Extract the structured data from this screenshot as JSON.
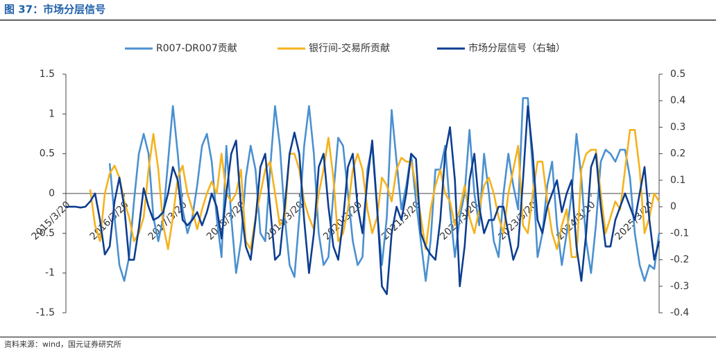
{
  "chart_data": {
    "type": "line",
    "title": "图 37：市场分层信号",
    "source": "资料来源：wind，国元证券研究所",
    "categories": [
      "2015/3/20",
      null,
      null,
      null,
      null,
      null,
      null,
      null,
      null,
      null,
      null,
      null,
      "2016/3/20",
      null,
      null,
      null,
      null,
      null,
      null,
      null,
      null,
      null,
      null,
      null,
      "2017/3/20",
      null,
      null,
      null,
      null,
      null,
      null,
      null,
      null,
      null,
      null,
      null,
      "2018/3/20",
      null,
      null,
      null,
      null,
      null,
      null,
      null,
      null,
      null,
      null,
      null,
      "2019/3/20",
      null,
      null,
      null,
      null,
      null,
      null,
      null,
      null,
      null,
      null,
      null,
      "2020/3/20",
      null,
      null,
      null,
      null,
      null,
      null,
      null,
      null,
      null,
      null,
      null,
      "2021/3/20",
      null,
      null,
      null,
      null,
      null,
      null,
      null,
      null,
      null,
      null,
      null,
      "2022/3/20",
      null,
      null,
      null,
      null,
      null,
      null,
      null,
      null,
      null,
      null,
      null,
      "2023/3/20",
      null,
      null,
      null,
      null,
      null,
      null,
      null,
      null,
      null,
      null,
      null,
      "2024/3/20",
      null,
      null,
      null,
      null,
      null,
      null,
      null,
      null,
      null,
      null,
      null,
      "2025/3/20",
      null,
      null
    ],
    "series": [
      {
        "name": "R007-DR007贡献",
        "color": "#4a90d0",
        "values": [
          null,
          null,
          null,
          null,
          null,
          null,
          null,
          null,
          null,
          0.38,
          -0.3,
          -0.9,
          -1.1,
          -0.8,
          -0.1,
          0.5,
          0.75,
          0.5,
          -0.3,
          -0.6,
          -0.3,
          0.4,
          1.1,
          0.5,
          -0.2,
          -0.5,
          -0.3,
          0.1,
          0.6,
          0.75,
          0.4,
          -0.3,
          -0.8,
          0.6,
          -0.3,
          -1.0,
          -0.6,
          0.2,
          0.6,
          0.3,
          -0.5,
          -0.6,
          0.3,
          1.1,
          0.6,
          -0.3,
          -0.9,
          -1.05,
          -0.3,
          0.6,
          1.1,
          0.5,
          -0.5,
          -0.9,
          -0.8,
          0.0,
          0.7,
          0.6,
          0.0,
          -0.6,
          -0.9,
          -0.8,
          0.3,
          0.6,
          -0.2,
          -0.9,
          -0.3,
          1.05,
          0.4,
          -0.2,
          0.1,
          0.5,
          -0.1,
          -0.6,
          -1.1,
          -0.6,
          0.3,
          0.3,
          0.6,
          -0.2,
          -0.8,
          -0.3,
          0.0,
          0.8,
          0.0,
          -0.4,
          0.5,
          0.0,
          -0.6,
          -0.8,
          0.0,
          0.5,
          0.1,
          -0.2,
          1.2,
          1.2,
          0.3,
          -0.8,
          -0.5,
          0.1,
          0.4,
          -0.4,
          -0.9,
          -0.5,
          0.0,
          0.75,
          0.2,
          -0.6,
          -1.0,
          -0.4,
          0.4,
          0.55,
          0.5,
          0.4,
          0.55,
          0.55,
          0.2,
          -0.5,
          -0.9,
          -1.1,
          -0.9,
          -0.95,
          -0.5
        ]
      },
      {
        "name": "银行间-交易所贡献",
        "color": "#f5b21b",
        "values": [
          null,
          null,
          null,
          null,
          null,
          0.05,
          -0.4,
          -0.6,
          0.0,
          0.25,
          0.35,
          0.2,
          -0.1,
          -0.3,
          -0.6,
          -0.5,
          -0.3,
          0.3,
          0.75,
          0.3,
          -0.4,
          -0.7,
          -0.3,
          0.2,
          0.35,
          0.0,
          -0.2,
          -0.45,
          -0.2,
          0.0,
          0.15,
          0.0,
          0.5,
          0.0,
          -0.1,
          0.0,
          0.3,
          -0.6,
          -0.7,
          -0.3,
          0.0,
          0.3,
          0.4,
          0.0,
          -0.4,
          -0.3,
          0.5,
          0.5,
          0.3,
          -0.1,
          -0.3,
          -0.45,
          0.0,
          0.3,
          0.7,
          0.2,
          -0.6,
          -0.5,
          -0.2,
          0.3,
          0.5,
          0.3,
          -0.2,
          -0.5,
          -0.3,
          0.2,
          0.1,
          -0.1,
          0.3,
          0.45,
          0.4,
          0.4,
          0.1,
          -0.3,
          -0.7,
          -0.2,
          0.1,
          0.3,
          0.0,
          -0.1,
          -0.4,
          -0.2,
          0.1,
          -0.3,
          -0.5,
          -0.2,
          0.1,
          0.2,
          0.0,
          -0.3,
          -0.5,
          0.0,
          0.3,
          0.6,
          -0.4,
          -0.5,
          0.0,
          0.4,
          0.4,
          -0.1,
          -0.5,
          -0.7,
          -0.4,
          -0.2,
          -0.8,
          -0.8,
          0.3,
          0.5,
          0.55,
          0.55,
          0.0,
          -0.5,
          -0.3,
          -0.1,
          -0.2,
          0.3,
          0.8,
          0.8,
          0.3,
          -0.5,
          -0.3,
          0.0,
          -0.1
        ]
      },
      {
        "name": "市场分层信号（右轴）",
        "color": "#0d3d8f",
        "axis": "y2",
        "values": [
          0,
          0,
          0,
          -0.003,
          0,
          0.02,
          0.05,
          -0.05,
          -0.18,
          -0.15,
          0.02,
          0.11,
          0,
          -0.2,
          -0.2,
          -0.08,
          0.07,
          0,
          -0.05,
          -0.04,
          -0.02,
          0.05,
          0.15,
          0.1,
          -0.05,
          -0.07,
          -0.05,
          -0.02,
          -0.07,
          -0.02,
          0.05,
          0,
          -0.12,
          0.05,
          0.2,
          0.25,
          0,
          -0.15,
          -0.2,
          -0.05,
          0.15,
          0.2,
          0,
          -0.2,
          -0.18,
          0,
          0.2,
          0.28,
          0.2,
          -0.05,
          -0.25,
          -0.1,
          0.15,
          0.2,
          0,
          -0.15,
          -0.2,
          -0.05,
          0.15,
          0.2,
          0,
          -0.1,
          0.1,
          0.25,
          0,
          -0.3,
          -0.33,
          -0.1,
          0,
          -0.05,
          0.05,
          0.2,
          0.18,
          -0.1,
          -0.15,
          -0.18,
          -0.2,
          -0.05,
          0.2,
          0.3,
          0.1,
          -0.3,
          -0.15,
          0.1,
          0.2,
          0,
          -0.1,
          -0.05,
          -0.05,
          0,
          0,
          -0.1,
          -0.2,
          -0.15,
          0.1,
          0.38,
          0.2,
          -0.05,
          -0.1,
          0,
          0.05,
          0.1,
          -0.02,
          0.05,
          0.1,
          -0.15,
          -0.28,
          -0.1,
          0.15,
          0.2,
          0,
          -0.15,
          -0.15,
          -0.05,
          0,
          0.05,
          0,
          -0.05,
          0.05,
          0.15,
          -0.05,
          -0.2,
          -0.13
        ]
      }
    ],
    "ylim": [
      -1.5,
      1.5
    ],
    "yticks": [
      -1.5,
      -1,
      -0.5,
      0,
      0.5,
      1,
      1.5
    ],
    "y2lim": [
      -0.4,
      0.5
    ],
    "y2ticks": [
      -0.4,
      -0.3,
      -0.2,
      -0.1,
      0,
      0.1,
      0.2,
      0.3,
      0.4,
      0.5
    ],
    "legend": "top"
  }
}
